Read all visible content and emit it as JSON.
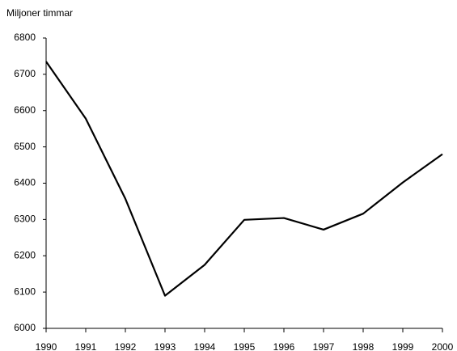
{
  "chart_data": {
    "type": "line",
    "y_label": "Miljoner timmar",
    "categories": [
      "1990",
      "1991",
      "1992",
      "1993",
      "1994",
      "1995",
      "1996",
      "1997",
      "1998",
      "1999",
      "2000"
    ],
    "series": [
      {
        "name": "Miljoner timmar",
        "color": "#000000",
        "values": [
          6735,
          6578,
          6357,
          6090,
          6175,
          6299,
          6304,
          6272,
          6316,
          6402,
          6480
        ]
      }
    ],
    "ylim": [
      6000,
      6800
    ],
    "yticks": [
      6000,
      6100,
      6200,
      6300,
      6400,
      6500,
      6600,
      6700,
      6800
    ],
    "grid": false
  }
}
